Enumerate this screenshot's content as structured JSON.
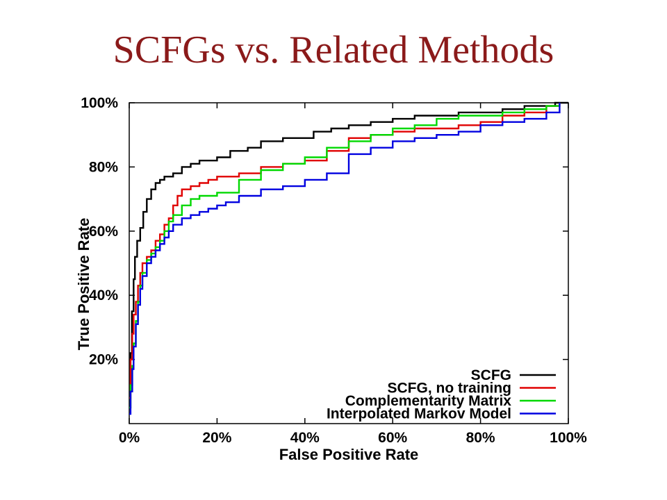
{
  "slide": {
    "title": "SCFGs vs. Related Methods"
  },
  "chart_data": {
    "type": "line",
    "title": "",
    "xlabel": "False Positive Rate",
    "ylabel": "True Positive Rate",
    "xlim": [
      0,
      100
    ],
    "ylim": [
      0,
      100
    ],
    "x_ticks": [
      0,
      20,
      40,
      60,
      80,
      100
    ],
    "x_tick_labels": [
      "0%",
      "20%",
      "40%",
      "60%",
      "80%",
      "100%"
    ],
    "y_ticks": [
      20,
      40,
      60,
      80,
      100
    ],
    "y_tick_labels": [
      "20%",
      "40%",
      "60%",
      "80%",
      "100%"
    ],
    "grid": false,
    "legend_position": "bottom-right",
    "series": [
      {
        "name": "SCFG",
        "color": "#000000",
        "x": [
          0,
          0.3,
          0.6,
          1.0,
          1.3,
          1.8,
          2.5,
          3.2,
          4.0,
          5.0,
          6.0,
          7.0,
          8.0,
          10.0,
          12.0,
          14.0,
          16.0,
          20.0,
          23.0,
          27.0,
          30.0,
          35.0,
          38.0,
          42.0,
          46.0,
          50.0,
          55.0,
          60.0,
          65.0,
          70.0,
          75.0,
          80.0,
          85.0,
          90.0,
          94.0,
          97.0,
          100.0
        ],
        "y": [
          5,
          22,
          35,
          45,
          52,
          57,
          61,
          66,
          70,
          73,
          75,
          76,
          77,
          78,
          80,
          81,
          82,
          83,
          85,
          86,
          88,
          89,
          89,
          91,
          92,
          93,
          94,
          95,
          96,
          96,
          97,
          97,
          98,
          99,
          99,
          100,
          100
        ]
      },
      {
        "name": "SCFG, no training",
        "color": "#e00000",
        "x": [
          0,
          0.3,
          0.7,
          1.0,
          1.5,
          2.0,
          2.5,
          3.0,
          4.0,
          5.0,
          6.0,
          7.0,
          8.0,
          9.0,
          10.0,
          11.0,
          12.0,
          14.0,
          16.0,
          18.0,
          20.0,
          25.0,
          30.0,
          35.0,
          40.0,
          45.0,
          50.0,
          55.0,
          60.0,
          65.0,
          70.0,
          75.0,
          80.0,
          85.0,
          90.0,
          95.0,
          98.0
        ],
        "y": [
          8,
          20,
          28,
          34,
          38,
          43,
          47,
          50,
          52,
          54,
          57,
          59,
          62,
          64,
          68,
          71,
          73,
          74,
          75,
          76,
          77,
          78,
          80,
          81,
          82,
          85,
          89,
          90,
          91,
          92,
          92,
          93,
          94,
          96,
          97,
          99,
          100
        ]
      },
      {
        "name": "Complementarity Matrix",
        "color": "#00d800",
        "x": [
          0,
          0.3,
          0.7,
          1.0,
          1.5,
          2.0,
          2.5,
          3.0,
          4.0,
          5.0,
          6.0,
          7.0,
          8.0,
          9.0,
          10.0,
          12.0,
          14.0,
          16.0,
          20.0,
          25.0,
          30.0,
          35.0,
          40.0,
          45.0,
          50.0,
          55.0,
          60.0,
          65.0,
          70.0,
          75.0,
          80.0,
          85.0,
          90.0,
          95.0,
          98.0
        ],
        "y": [
          5,
          12,
          18,
          25,
          32,
          38,
          43,
          47,
          51,
          53,
          55,
          57,
          60,
          63,
          65,
          68,
          70,
          71,
          72,
          76,
          79,
          81,
          83,
          86,
          88,
          90,
          92,
          93,
          95,
          96,
          96,
          97,
          98,
          99,
          100
        ]
      },
      {
        "name": "Interpolated Markov Model",
        "color": "#0000e0",
        "x": [
          0,
          0.3,
          0.7,
          1.0,
          1.5,
          2.0,
          2.5,
          3.0,
          4.0,
          5.0,
          6.0,
          7.0,
          8.0,
          9.0,
          10.0,
          12.0,
          14.0,
          16.0,
          18.0,
          20.0,
          22.0,
          25.0,
          30.0,
          35.0,
          40.0,
          45.0,
          50.0,
          55.0,
          60.0,
          65.0,
          70.0,
          75.0,
          80.0,
          85.0,
          90.0,
          95.0,
          98.0
        ],
        "y": [
          3,
          10,
          17,
          24,
          31,
          37,
          42,
          46,
          50,
          52,
          54,
          56,
          58,
          60,
          62,
          64,
          65,
          66,
          67,
          68,
          69,
          71,
          73,
          74,
          76,
          78,
          84,
          86,
          88,
          89,
          90,
          91,
          93,
          94,
          95,
          97,
          100
        ]
      }
    ]
  }
}
